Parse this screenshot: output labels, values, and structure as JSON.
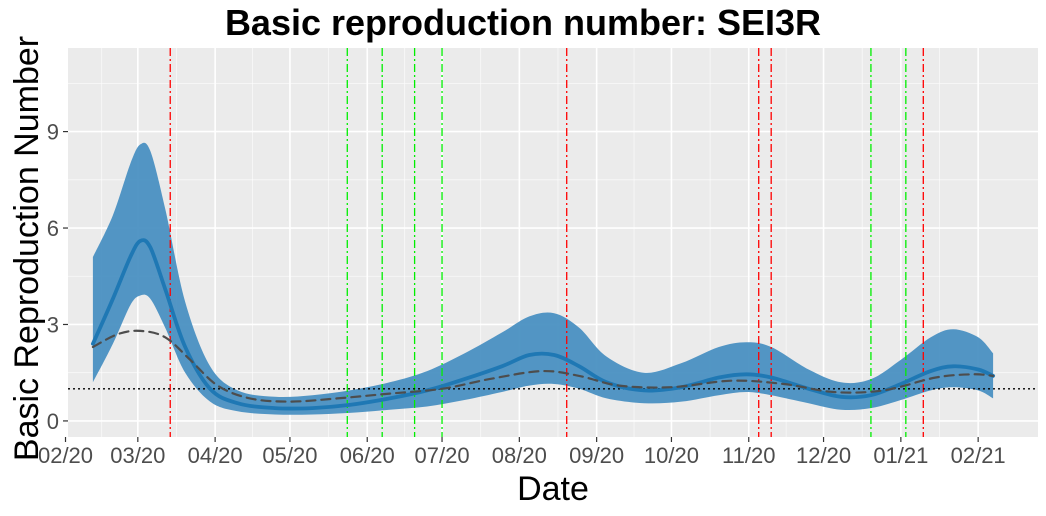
{
  "chart_data": {
    "type": "line",
    "title": "Basic reproduction number: SEI3R",
    "xlabel": "Date",
    "ylabel": "Basic Reproduction Number",
    "x_range": [
      "2020-02-02",
      "2021-02-25"
    ],
    "ylim": [
      -0.5,
      11.6
    ],
    "x_ticks": [
      {
        "date": "2020-02-01",
        "label": "02/20"
      },
      {
        "date": "2020-03-01",
        "label": "03/20"
      },
      {
        "date": "2020-04-01",
        "label": "04/20"
      },
      {
        "date": "2020-05-01",
        "label": "05/20"
      },
      {
        "date": "2020-06-01",
        "label": "06/20"
      },
      {
        "date": "2020-07-01",
        "label": "07/20"
      },
      {
        "date": "2020-08-01",
        "label": "08/20"
      },
      {
        "date": "2020-09-01",
        "label": "09/20"
      },
      {
        "date": "2020-10-01",
        "label": "10/20"
      },
      {
        "date": "2020-11-01",
        "label": "11/20"
      },
      {
        "date": "2020-12-01",
        "label": "12/20"
      },
      {
        "date": "2021-01-01",
        "label": "01/21"
      },
      {
        "date": "2021-02-01",
        "label": "02/21"
      }
    ],
    "y_ticks": [
      0,
      3,
      6,
      9
    ],
    "grid": true,
    "reference_line": {
      "y": 1,
      "style": "dotted",
      "color": "#000000"
    },
    "series": [
      {
        "role": "mean",
        "color": "#1f78b4",
        "style": "solid",
        "points": [
          [
            "2020-02-12",
            2.4
          ],
          [
            "2020-02-20",
            3.8
          ],
          [
            "2020-02-27",
            5.1
          ],
          [
            "2020-03-02",
            5.6
          ],
          [
            "2020-03-06",
            5.4
          ],
          [
            "2020-03-12",
            4.1
          ],
          [
            "2020-03-20",
            2.3
          ],
          [
            "2020-03-30",
            1.0
          ],
          [
            "2020-04-10",
            0.55
          ],
          [
            "2020-04-25",
            0.4
          ],
          [
            "2020-05-10",
            0.4
          ],
          [
            "2020-05-25",
            0.5
          ],
          [
            "2020-06-10",
            0.7
          ],
          [
            "2020-06-25",
            0.95
          ],
          [
            "2020-07-10",
            1.3
          ],
          [
            "2020-07-25",
            1.7
          ],
          [
            "2020-08-05",
            2.05
          ],
          [
            "2020-08-15",
            2.05
          ],
          [
            "2020-08-25",
            1.7
          ],
          [
            "2020-09-05",
            1.2
          ],
          [
            "2020-09-20",
            0.95
          ],
          [
            "2020-10-05",
            1.05
          ],
          [
            "2020-10-20",
            1.35
          ],
          [
            "2020-10-31",
            1.45
          ],
          [
            "2020-11-10",
            1.35
          ],
          [
            "2020-11-25",
            1.0
          ],
          [
            "2020-12-08",
            0.75
          ],
          [
            "2020-12-20",
            0.8
          ],
          [
            "2021-01-01",
            1.15
          ],
          [
            "2021-01-13",
            1.55
          ],
          [
            "2021-01-22",
            1.7
          ],
          [
            "2021-02-01",
            1.6
          ],
          [
            "2021-02-07",
            1.4
          ]
        ]
      },
      {
        "role": "comparison",
        "color": "#4d4d4d",
        "style": "dashed",
        "points": [
          [
            "2020-02-12",
            2.3
          ],
          [
            "2020-02-22",
            2.7
          ],
          [
            "2020-03-02",
            2.8
          ],
          [
            "2020-03-12",
            2.6
          ],
          [
            "2020-03-22",
            1.9
          ],
          [
            "2020-04-02",
            1.1
          ],
          [
            "2020-04-15",
            0.7
          ],
          [
            "2020-05-01",
            0.6
          ],
          [
            "2020-05-20",
            0.7
          ],
          [
            "2020-06-10",
            0.85
          ],
          [
            "2020-07-01",
            1.0
          ],
          [
            "2020-07-20",
            1.3
          ],
          [
            "2020-08-10",
            1.55
          ],
          [
            "2020-08-25",
            1.4
          ],
          [
            "2020-09-10",
            1.1
          ],
          [
            "2020-10-01",
            1.05
          ],
          [
            "2020-10-25",
            1.25
          ],
          [
            "2020-11-15",
            1.15
          ],
          [
            "2020-12-05",
            0.9
          ],
          [
            "2020-12-25",
            0.95
          ],
          [
            "2021-01-15",
            1.35
          ],
          [
            "2021-01-30",
            1.45
          ],
          [
            "2021-02-07",
            1.4
          ]
        ]
      }
    ],
    "band": {
      "color": "#4a90c2",
      "points": [
        [
          "2020-02-12",
          1.2,
          5.1
        ],
        [
          "2020-02-20",
          2.4,
          6.4
        ],
        [
          "2020-02-27",
          3.6,
          8.0
        ],
        [
          "2020-03-02",
          3.9,
          8.6
        ],
        [
          "2020-03-06",
          3.8,
          8.4
        ],
        [
          "2020-03-12",
          2.9,
          6.6
        ],
        [
          "2020-03-20",
          1.5,
          3.7
        ],
        [
          "2020-03-30",
          0.6,
          1.7
        ],
        [
          "2020-04-10",
          0.3,
          0.95
        ],
        [
          "2020-04-25",
          0.2,
          0.75
        ],
        [
          "2020-05-10",
          0.2,
          0.8
        ],
        [
          "2020-05-25",
          0.25,
          0.95
        ],
        [
          "2020-06-10",
          0.35,
          1.2
        ],
        [
          "2020-06-25",
          0.45,
          1.55
        ],
        [
          "2020-07-10",
          0.65,
          2.1
        ],
        [
          "2020-07-25",
          0.9,
          2.75
        ],
        [
          "2020-08-05",
          1.1,
          3.25
        ],
        [
          "2020-08-15",
          1.15,
          3.35
        ],
        [
          "2020-08-25",
          1.0,
          2.9
        ],
        [
          "2020-09-05",
          0.7,
          2.0
        ],
        [
          "2020-09-20",
          0.55,
          1.5
        ],
        [
          "2020-10-05",
          0.6,
          1.8
        ],
        [
          "2020-10-20",
          0.8,
          2.3
        ],
        [
          "2020-10-31",
          0.9,
          2.45
        ],
        [
          "2020-11-10",
          0.8,
          2.3
        ],
        [
          "2020-11-25",
          0.55,
          1.6
        ],
        [
          "2020-12-08",
          0.35,
          1.2
        ],
        [
          "2020-12-20",
          0.4,
          1.3
        ],
        [
          "2021-01-01",
          0.65,
          1.9
        ],
        [
          "2021-01-13",
          0.95,
          2.6
        ],
        [
          "2021-01-22",
          1.05,
          2.85
        ],
        [
          "2021-02-01",
          0.95,
          2.6
        ],
        [
          "2021-02-07",
          0.7,
          2.1
        ]
      ]
    },
    "vlines_red": [
      "2020-03-14",
      "2020-08-20",
      "2020-11-05",
      "2020-11-10",
      "2021-01-10"
    ],
    "vlines_green": [
      "2020-05-24",
      "2020-06-07",
      "2020-06-20",
      "2020-07-01",
      "2020-12-20",
      "2021-01-03"
    ],
    "vline_red_color": "#ff0000",
    "vline_green_color": "#00ee00",
    "panel_background": "#ebebeb",
    "gridline_color": "#ffffff"
  }
}
